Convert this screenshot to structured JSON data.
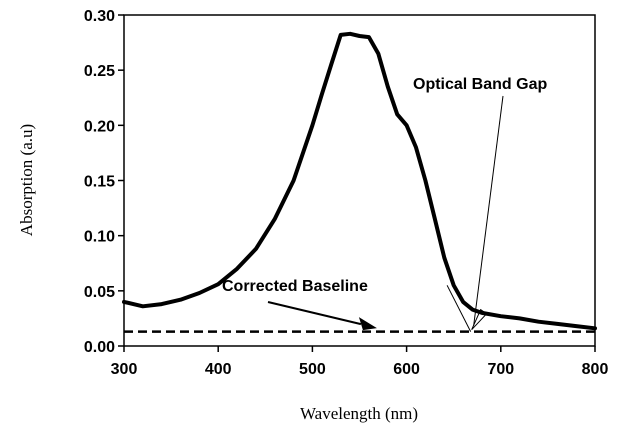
{
  "chart_data": {
    "type": "line",
    "title": "",
    "xlabel": "Wavelength (nm)",
    "ylabel": "Absorption (a.u)",
    "xlim": [
      300,
      800
    ],
    "ylim": [
      0,
      0.3
    ],
    "x_ticks": [
      "300",
      "400",
      "500",
      "600",
      "700",
      "800"
    ],
    "y_ticks": [
      "0.00",
      "0.05",
      "0.10",
      "0.15",
      "0.20",
      "0.25",
      "0.30"
    ],
    "grid": false,
    "legend": "none",
    "series": [
      {
        "x": [
          300,
          320,
          340,
          360,
          380,
          400,
          420,
          440,
          460,
          480,
          500,
          510,
          520,
          530,
          540,
          550,
          560,
          570,
          580,
          590,
          600,
          610,
          620,
          630,
          640,
          650,
          660,
          670,
          680,
          700,
          720,
          740,
          760,
          780,
          800
        ],
        "y": [
          0.04,
          0.036,
          0.038,
          0.042,
          0.048,
          0.056,
          0.07,
          0.088,
          0.115,
          0.15,
          0.2,
          0.228,
          0.255,
          0.282,
          0.283,
          0.281,
          0.28,
          0.265,
          0.235,
          0.21,
          0.2,
          0.18,
          0.15,
          0.115,
          0.08,
          0.055,
          0.04,
          0.033,
          0.03,
          0.027,
          0.025,
          0.022,
          0.02,
          0.018,
          0.016
        ],
        "color": "#000000"
      }
    ],
    "baseline": {
      "y": 0.013,
      "style": "dashed"
    },
    "tangent_line": {
      "x": [
        643,
        668
      ],
      "y": [
        0.055,
        0.013
      ]
    },
    "annotations": [
      {
        "text": "Optical Band Gap",
        "target": [
          668,
          0.013
        ]
      },
      {
        "text": "Corrected Baseline",
        "target": [
          560,
          0.018
        ]
      }
    ]
  }
}
